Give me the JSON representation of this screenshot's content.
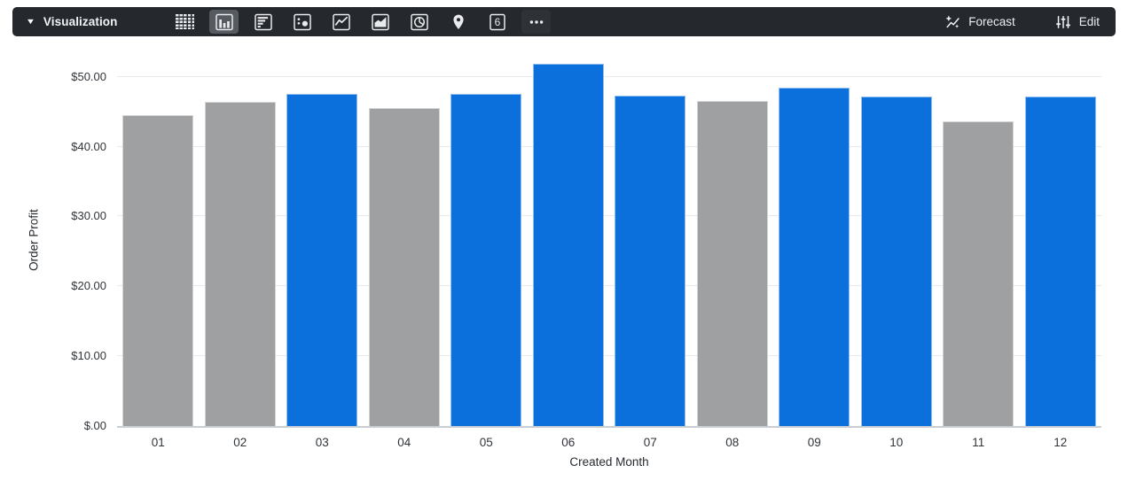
{
  "toolbar": {
    "dropdown_label": "Visualization",
    "caret_glyph": "▼",
    "viz_type_icons": [
      "table-icon",
      "column-chart-icon",
      "bar-chart-icon",
      "scatter-plot-icon",
      "line-chart-icon",
      "area-chart-icon",
      "pie-chart-icon",
      "map-pin-icon",
      "single-value-icon",
      "more-options-icon"
    ],
    "selected_type": "column-chart",
    "single_value_number": "6",
    "forecast_label": "Forecast",
    "edit_label": "Edit",
    "colors": {
      "background": "#25282c",
      "selected_type_background": "#565b61",
      "icon_foreground": "#e8eaed"
    }
  },
  "chart_data": {
    "type": "bar",
    "title": "",
    "xlabel": "Created Month",
    "ylabel": "Order Profit",
    "categories": [
      "01",
      "02",
      "03",
      "04",
      "05",
      "06",
      "07",
      "08",
      "09",
      "10",
      "11",
      "12"
    ],
    "values": [
      44.5,
      46.4,
      47.6,
      45.5,
      47.6,
      51.9,
      47.3,
      46.6,
      48.5,
      47.2,
      43.6,
      47.2
    ],
    "bar_color_keys": [
      "muted",
      "muted",
      "highlight",
      "muted",
      "highlight",
      "highlight",
      "highlight",
      "muted",
      "highlight",
      "highlight",
      "muted",
      "highlight"
    ],
    "palette": {
      "highlight": "#0b70dc",
      "muted": "#9fa0a2"
    },
    "y_ticks": [
      {
        "value": 0,
        "label": "$.00"
      },
      {
        "value": 10,
        "label": "$10.00"
      },
      {
        "value": 20,
        "label": "$20.00"
      },
      {
        "value": 30,
        "label": "$30.00"
      },
      {
        "value": 40,
        "label": "$40.00"
      },
      {
        "value": 50,
        "label": "$50.00"
      }
    ],
    "ylim": [
      0,
      53.4
    ],
    "grid": true,
    "legend": "none"
  }
}
